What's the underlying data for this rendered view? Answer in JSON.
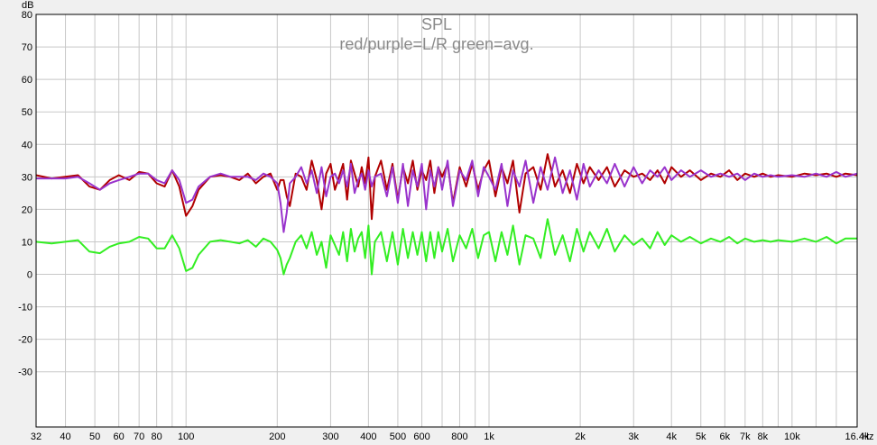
{
  "chart_data": {
    "type": "line",
    "title": "SPL",
    "subtitle": "red/purple=L/R  green=avg.",
    "ylabel": "dB",
    "xlabel": "Hz",
    "x_scale": "log",
    "xlim": [
      32,
      16400
    ],
    "ylim": [
      -47,
      80
    ],
    "grid": true,
    "y_ticks": [
      80,
      70,
      60,
      50,
      40,
      30,
      20,
      10,
      0,
      -10,
      -20,
      -30
    ],
    "x_ticks": [
      {
        "value": 32,
        "label": "32"
      },
      {
        "value": 40,
        "label": "40"
      },
      {
        "value": 50,
        "label": "50"
      },
      {
        "value": 60,
        "label": "60"
      },
      {
        "value": 70,
        "label": "70"
      },
      {
        "value": 80,
        "label": "80"
      },
      {
        "value": 100,
        "label": "100"
      },
      {
        "value": 200,
        "label": "200"
      },
      {
        "value": 300,
        "label": "300"
      },
      {
        "value": 400,
        "label": "400"
      },
      {
        "value": 500,
        "label": "500"
      },
      {
        "value": 600,
        "label": "600"
      },
      {
        "value": 800,
        "label": "800"
      },
      {
        "value": 1000,
        "label": "1k"
      },
      {
        "value": 2000,
        "label": "2k"
      },
      {
        "value": 3000,
        "label": "3k"
      },
      {
        "value": 4000,
        "label": "4k"
      },
      {
        "value": 5000,
        "label": "5k"
      },
      {
        "value": 6000,
        "label": "6k"
      },
      {
        "value": 7000,
        "label": "7k"
      },
      {
        "value": 8000,
        "label": "8k"
      },
      {
        "value": 10000,
        "label": "10k"
      },
      {
        "value": 16400,
        "label": "16.4k"
      }
    ],
    "minor_x_grid": [
      90,
      700,
      900,
      9000,
      12000,
      14000
    ],
    "series": [
      {
        "color": "#b00000",
        "x": [
          32,
          36,
          40,
          44,
          48,
          52,
          56,
          60,
          65,
          70,
          75,
          80,
          85,
          90,
          95,
          100,
          105,
          110,
          120,
          130,
          140,
          150,
          160,
          170,
          180,
          190,
          200,
          205,
          210,
          215,
          220,
          230,
          240,
          250,
          260,
          270,
          280,
          290,
          300,
          310,
          320,
          330,
          340,
          350,
          360,
          370,
          380,
          390,
          400,
          410,
          420,
          440,
          460,
          480,
          500,
          520,
          540,
          560,
          580,
          600,
          620,
          640,
          660,
          680,
          700,
          730,
          760,
          800,
          840,
          880,
          920,
          960,
          1000,
          1050,
          1100,
          1150,
          1200,
          1260,
          1320,
          1400,
          1480,
          1560,
          1650,
          1750,
          1850,
          1950,
          2050,
          2150,
          2300,
          2450,
          2600,
          2800,
          3000,
          3200,
          3400,
          3600,
          3800,
          4000,
          4300,
          4600,
          5000,
          5400,
          5800,
          6200,
          6600,
          7000,
          7500,
          8000,
          8500,
          9000,
          10000,
          11000,
          12000,
          13000,
          14000,
          15000,
          16400
        ],
        "y": [
          30.5,
          29.5,
          30,
          30.5,
          27,
          26,
          29,
          30.5,
          29,
          31.5,
          31,
          28,
          27,
          32,
          27,
          18,
          21,
          26,
          30,
          30.5,
          30,
          29,
          31,
          28,
          30,
          31,
          26,
          29,
          29,
          24,
          21,
          31,
          30,
          26,
          35,
          29,
          20,
          31,
          34,
          26,
          30,
          34,
          23,
          35,
          31,
          27,
          33,
          28,
          36,
          17,
          30,
          35,
          26,
          34,
          23,
          33,
          28,
          35,
          26,
          32,
          29,
          35,
          25,
          33,
          30,
          34,
          22,
          33,
          27,
          34,
          26,
          32,
          35,
          24,
          33,
          28,
          35,
          19,
          31,
          33,
          26,
          37,
          27,
          32,
          25,
          34,
          28,
          33,
          29,
          33,
          27,
          32,
          30,
          31,
          29,
          32,
          28,
          33,
          30,
          32,
          29,
          31,
          30,
          32,
          29,
          31,
          30,
          31,
          30,
          30.5,
          30,
          31,
          30.5,
          31,
          30,
          31,
          30.5
        ]
      },
      {
        "color": "#9933cc",
        "x": [
          32,
          36,
          40,
          44,
          48,
          52,
          56,
          60,
          65,
          70,
          75,
          80,
          85,
          90,
          95,
          100,
          105,
          110,
          120,
          130,
          140,
          150,
          160,
          170,
          180,
          190,
          200,
          205,
          210,
          215,
          220,
          230,
          240,
          250,
          260,
          270,
          280,
          290,
          300,
          310,
          320,
          330,
          340,
          350,
          360,
          370,
          380,
          390,
          400,
          410,
          420,
          440,
          460,
          480,
          500,
          520,
          540,
          560,
          580,
          600,
          620,
          640,
          660,
          680,
          700,
          730,
          760,
          800,
          840,
          880,
          920,
          960,
          1000,
          1050,
          1100,
          1150,
          1200,
          1260,
          1320,
          1400,
          1480,
          1560,
          1650,
          1750,
          1850,
          1950,
          2050,
          2150,
          2300,
          2450,
          2600,
          2800,
          3000,
          3200,
          3400,
          3600,
          3800,
          4000,
          4300,
          4600,
          5000,
          5400,
          5800,
          6200,
          6600,
          7000,
          7500,
          8000,
          8500,
          9000,
          10000,
          11000,
          12000,
          13000,
          14000,
          15000,
          16400
        ],
        "y": [
          29.5,
          29.5,
          29.5,
          30,
          28,
          26,
          28,
          29,
          30,
          31,
          31,
          29,
          28,
          32,
          29,
          22,
          23,
          27,
          30,
          31,
          30,
          30,
          30,
          29,
          31,
          30,
          28,
          22,
          13,
          19,
          28,
          30,
          33,
          28,
          32,
          25,
          33,
          24,
          30,
          31,
          28,
          32,
          27,
          34,
          25,
          29,
          31,
          26,
          32,
          27,
          30,
          31,
          24,
          33,
          22,
          34,
          21,
          32,
          27,
          34,
          20,
          32,
          27,
          33,
          26,
          35,
          21,
          32,
          29,
          35,
          24,
          33,
          30,
          26,
          34,
          21,
          32,
          27,
          35,
          22,
          33,
          26,
          36,
          25,
          32,
          23,
          34,
          27,
          32,
          28,
          34,
          27,
          33,
          28,
          32,
          30,
          33,
          29,
          32,
          30,
          32,
          30,
          31,
          30,
          31,
          29,
          31,
          30,
          30.5,
          30,
          30.5,
          30,
          31,
          30,
          31.5,
          30,
          31
        ]
      },
      {
        "color": "#33ee22",
        "x": [
          32,
          36,
          40,
          44,
          48,
          52,
          56,
          60,
          65,
          70,
          75,
          80,
          85,
          90,
          95,
          100,
          105,
          110,
          120,
          130,
          140,
          150,
          160,
          170,
          180,
          190,
          200,
          205,
          210,
          215,
          220,
          230,
          240,
          250,
          260,
          270,
          280,
          290,
          300,
          310,
          320,
          330,
          340,
          350,
          360,
          370,
          380,
          390,
          400,
          410,
          420,
          440,
          460,
          480,
          500,
          520,
          540,
          560,
          580,
          600,
          620,
          640,
          660,
          680,
          700,
          730,
          760,
          800,
          840,
          880,
          920,
          960,
          1000,
          1050,
          1100,
          1150,
          1200,
          1260,
          1320,
          1400,
          1480,
          1560,
          1650,
          1750,
          1850,
          1950,
          2050,
          2150,
          2300,
          2450,
          2600,
          2800,
          3000,
          3200,
          3400,
          3600,
          3800,
          4000,
          4300,
          4600,
          5000,
          5400,
          5800,
          6200,
          6600,
          7000,
          7500,
          8000,
          8500,
          9000,
          10000,
          11000,
          12000,
          13000,
          14000,
          15000,
          16400
        ],
        "y": [
          10,
          9.5,
          10,
          10.5,
          7,
          6.5,
          8.5,
          9.5,
          10,
          11.5,
          11,
          8,
          8,
          12,
          8,
          1,
          2,
          6,
          10,
          10.5,
          10,
          9.5,
          10.5,
          8.5,
          11,
          10,
          7.5,
          5,
          0,
          3,
          5,
          10,
          12,
          8,
          13,
          6,
          10,
          2,
          12,
          9,
          6,
          13,
          4,
          14,
          7,
          11,
          13,
          5,
          15,
          0,
          10,
          13,
          4,
          13,
          3,
          14,
          5,
          13,
          6,
          13,
          4,
          13,
          5,
          13,
          7,
          14,
          4,
          12,
          8,
          14,
          5,
          12,
          13,
          4,
          13,
          6,
          15,
          3,
          12,
          11,
          5,
          17,
          6,
          12,
          4,
          14,
          7,
          13,
          8,
          14,
          7,
          12,
          9,
          11,
          8,
          13,
          9,
          12,
          10,
          11.5,
          9.5,
          11,
          10,
          11.5,
          9.5,
          11,
          10,
          10.5,
          10,
          10.5,
          10,
          11,
          10,
          11.5,
          9.5,
          11,
          11
        ]
      }
    ]
  }
}
